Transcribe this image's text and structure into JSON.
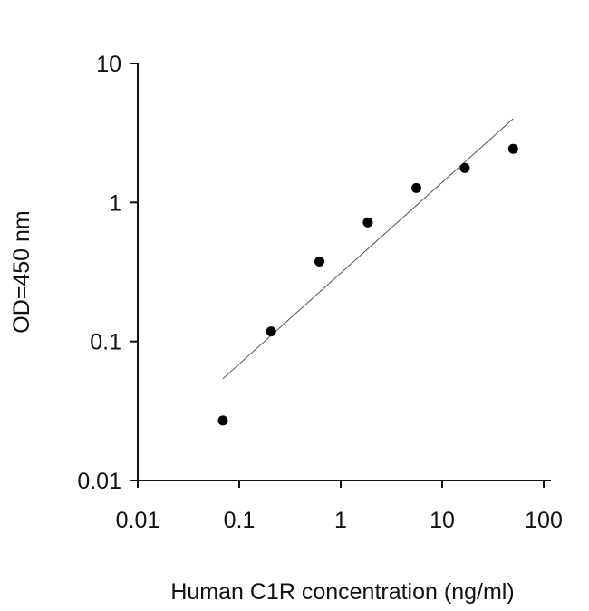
{
  "chart_data": {
    "type": "scatter",
    "title": "",
    "xlabel": "Human C1R concentration (ng/ml)",
    "ylabel": "OD=450 nm",
    "x_scale": "log",
    "y_scale": "log",
    "xlim": [
      0.01,
      100
    ],
    "ylim": [
      0.01,
      10
    ],
    "x_ticks": [
      "0.01",
      "0.1",
      "1",
      "10",
      "100"
    ],
    "y_ticks": [
      "0.01",
      "0.1",
      "1",
      "10"
    ],
    "x_tick_values": [
      0.01,
      0.1,
      1,
      10,
      100
    ],
    "y_tick_values": [
      0.01,
      0.1,
      1,
      10
    ],
    "grid": false,
    "series": [
      {
        "x": [
          0.069,
          0.206,
          0.617,
          1.85,
          5.56,
          16.7,
          50
        ],
        "y": [
          0.027,
          0.118,
          0.376,
          0.72,
          1.27,
          1.77,
          2.43
        ],
        "marker": "circle",
        "color": "#000000"
      }
    ],
    "fit_line": {
      "x": [
        0.069,
        50
      ],
      "y": [
        0.054,
        4.0
      ],
      "color": "#555555"
    }
  }
}
